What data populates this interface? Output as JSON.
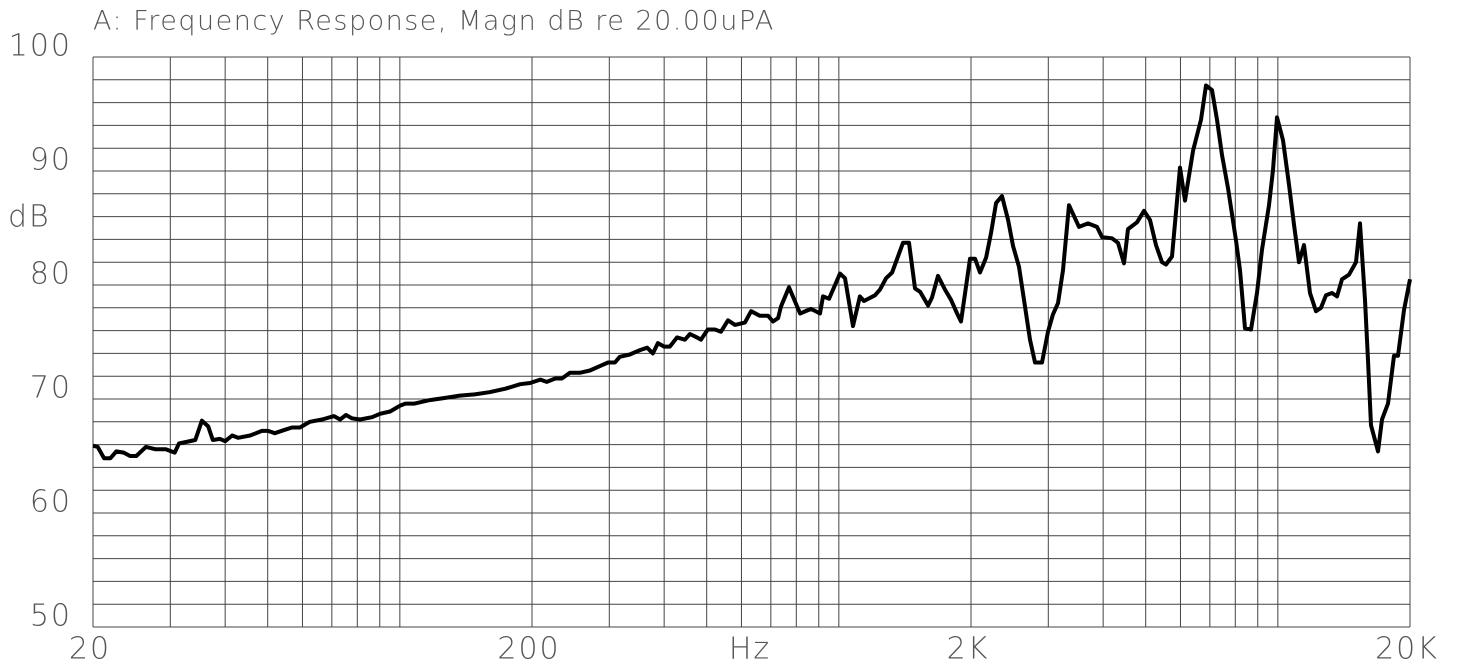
{
  "chart_data": {
    "type": "line",
    "title": "A: Frequency Response, Magn dB re 20.00uPA",
    "xlabel": "Hz",
    "ylabel": "dB",
    "xscale": "log",
    "grid": true,
    "color": "#000000",
    "xlim": [
      20,
      20000
    ],
    "ylim": [
      50,
      100
    ],
    "xticks": [
      {
        "value": 20,
        "label": "20"
      },
      {
        "value": 200,
        "label": "200"
      },
      {
        "value": 2000,
        "label": "2K"
      },
      {
        "value": 20000,
        "label": "20K"
      }
    ],
    "xminorticks": [
      30,
      40,
      50,
      60,
      70,
      80,
      90,
      100,
      300,
      400,
      500,
      600,
      700,
      800,
      900,
      1000,
      3000,
      4000,
      5000,
      6000,
      7000,
      8000,
      9000,
      10000
    ],
    "yticks": [
      50,
      60,
      70,
      80,
      90,
      100
    ],
    "yminorticks": [
      52,
      54,
      56,
      58,
      62,
      64,
      66,
      68,
      72,
      74,
      76,
      78,
      82,
      84,
      86,
      88,
      92,
      94,
      96,
      98
    ],
    "x": [
      20,
      20.5,
      21.2,
      21.9,
      22.6,
      23.5,
      24.3,
      25.1,
      26.4,
      27.7,
      29.3,
      30.7,
      31.4,
      34.2,
      35.4,
      36.6,
      37.5,
      38.9,
      40.0,
      41.5,
      42.8,
      45.6,
      48.5,
      50.1,
      51.9,
      54.7,
      56.8,
      59.2,
      62.4,
      66.5,
      70.8,
      73.1,
      75.4,
      77.8,
      81.2,
      86.4,
      90.1,
      95.0,
      100,
      103,
      108,
      117,
      127,
      137,
      148,
      160,
      174,
      188,
      198,
      209,
      216,
      226,
      234,
      244,
      257,
      271,
      286,
      298,
      309,
      317,
      334,
      353,
      366,
      377,
      387,
      400,
      412,
      428,
      446,
      458,
      475,
      485,
      503,
      522,
      539,
      559,
      580,
      611,
      631,
      661,
      690,
      708,
      727,
      738,
      770,
      816,
      864,
      906,
      920,
      950,
      1006,
      1033,
      1077,
      1117,
      1141,
      1209,
      1241,
      1281,
      1322,
      1400,
      1445,
      1491,
      1531,
      1597,
      1630,
      1682,
      1745,
      1801,
      1859,
      1898,
      1990,
      2043,
      2097,
      2165,
      2222,
      2281,
      2353,
      2429,
      2494,
      2573,
      2726,
      2798,
      2902,
      2995,
      3074,
      3156,
      3240,
      3344,
      3524,
      3694,
      3872,
      3975,
      4190,
      4324,
      4462,
      4557,
      4777,
      4956,
      5114,
      5278,
      5447,
      5563,
      5741,
      5987,
      6146,
      6410,
      6684,
      6862,
      7080,
      7268,
      7461,
      7700,
      8030,
      8200,
      8417,
      8686,
      8964,
      9202,
      9546,
      9748,
      9956,
      10272,
      10602,
      10884,
      11173,
      11470,
      11837,
      12216,
      12540,
      12873,
      13285,
      13638,
      14000,
      14523,
      15066,
      15385,
      15793,
      16045,
      16300,
      16909,
      17268,
      17820,
      18390,
      18780,
      19382,
      20000
    ],
    "values": [
      65.9,
      65.8,
      64.8,
      64.8,
      65.4,
      65.3,
      65.0,
      65.0,
      65.8,
      65.6,
      65.6,
      65.3,
      66.1,
      66.4,
      68.1,
      67.6,
      66.4,
      66.5,
      66.3,
      66.8,
      66.6,
      66.8,
      67.2,
      67.2,
      67.0,
      67.3,
      67.5,
      67.5,
      68.0,
      68.2,
      68.5,
      68.2,
      68.6,
      68.3,
      68.2,
      68.4,
      68.7,
      68.9,
      69.4,
      69.6,
      69.6,
      69.9,
      70.1,
      70.3,
      70.4,
      70.6,
      70.9,
      71.3,
      71.4,
      71.7,
      71.5,
      71.8,
      71.8,
      72.3,
      72.3,
      72.5,
      72.9,
      73.2,
      73.2,
      73.7,
      73.9,
      74.3,
      74.5,
      74.0,
      74.9,
      74.6,
      74.6,
      75.4,
      75.2,
      75.7,
      75.4,
      75.2,
      76.1,
      76.1,
      75.9,
      76.9,
      76.5,
      76.7,
      77.7,
      77.3,
      77.3,
      76.8,
      77.1,
      78.1,
      79.8,
      77.5,
      77.9,
      77.5,
      79.0,
      78.8,
      81.0,
      80.6,
      76.4,
      79.0,
      78.6,
      79.1,
      79.6,
      80.6,
      81.1,
      83.7,
      83.7,
      79.7,
      79.4,
      78.2,
      78.9,
      80.8,
      79.6,
      78.7,
      77.5,
      76.8,
      82.3,
      82.3,
      81.1,
      82.4,
      84.6,
      87.2,
      87.8,
      85.7,
      83.4,
      81.6,
      75.2,
      73.2,
      73.2,
      75.9,
      77.4,
      78.4,
      81.3,
      87.0,
      85.1,
      85.4,
      85.1,
      84.2,
      84.1,
      83.7,
      81.9,
      84.9,
      85.5,
      86.5,
      85.7,
      83.5,
      82.0,
      81.8,
      82.5,
      90.3,
      87.4,
      91.8,
      94.5,
      97.5,
      97.1,
      94.5,
      91.4,
      88.5,
      83.9,
      81.3,
      76.2,
      76.1,
      79.3,
      83.1,
      87.0,
      90.1,
      94.7,
      92.7,
      88.8,
      85.3,
      82.0,
      83.5,
      79.3,
      77.7,
      78.0,
      79.1,
      79.3,
      79.0,
      80.5,
      80.9,
      82.0,
      85.4,
      78.7,
      73.4,
      67.7,
      65.4,
      68.2,
      69.6,
      73.8,
      73.8,
      77.8,
      80.5
    ]
  }
}
